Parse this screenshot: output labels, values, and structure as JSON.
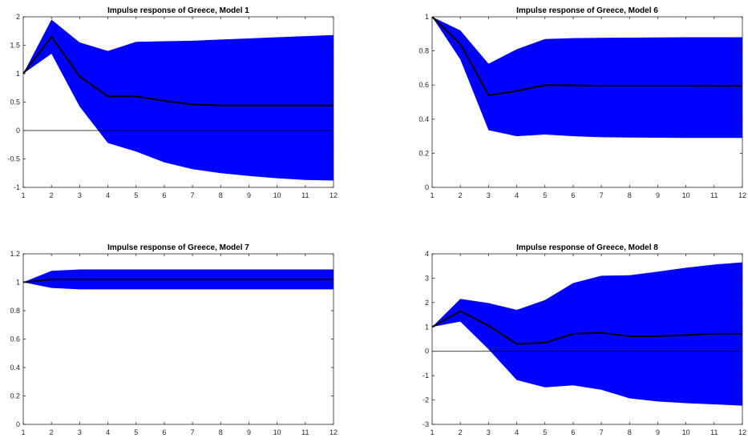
{
  "colors": {
    "band": "#0000ff",
    "line": "#000000",
    "zero_line": "#000000",
    "axes": "#262626",
    "background": "#ffffff"
  },
  "chart_data": [
    {
      "type": "area",
      "title": "Impulse response of Greece, Model 1",
      "xlabel": "",
      "ylabel": "",
      "x": [
        1,
        2,
        3,
        4,
        5,
        6,
        7,
        8,
        9,
        10,
        11,
        12
      ],
      "xlim": [
        1,
        12
      ],
      "ylim": [
        -1,
        2
      ],
      "yticks": [
        -1,
        -0.5,
        0,
        0.5,
        1,
        1.5,
        2
      ],
      "ytick_labels": [
        "-1",
        "-0.5",
        "0",
        "0.5",
        "1",
        "1.5",
        "2"
      ],
      "zero_line": true,
      "grid": false,
      "legend": "none",
      "series": [
        {
          "role": "median",
          "values": [
            1,
            1.65,
            0.95,
            0.6,
            0.6,
            0.52,
            0.46,
            0.44,
            0.44,
            0.44,
            0.44,
            0.44
          ]
        },
        {
          "role": "upper",
          "values": [
            1,
            1.95,
            1.55,
            1.4,
            1.56,
            1.57,
            1.58,
            1.6,
            1.62,
            1.64,
            1.66,
            1.68
          ]
        },
        {
          "role": "lower",
          "values": [
            1,
            1.35,
            0.42,
            -0.22,
            -0.37,
            -0.56,
            -0.68,
            -0.75,
            -0.8,
            -0.84,
            -0.87,
            -0.88
          ]
        }
      ]
    },
    {
      "type": "area",
      "title": "Impulse response of Greece, Model 6",
      "xlabel": "",
      "ylabel": "",
      "x": [
        1,
        2,
        3,
        4,
        5,
        6,
        7,
        8,
        9,
        10,
        11,
        12
      ],
      "xlim": [
        1,
        12
      ],
      "ylim": [
        0,
        1
      ],
      "yticks": [
        0,
        0.2,
        0.4,
        0.6,
        0.8,
        1
      ],
      "ytick_labels": [
        "0",
        "0.2",
        "0.4",
        "0.6",
        "0.8",
        "1"
      ],
      "zero_line": false,
      "grid": false,
      "legend": "none",
      "series": [
        {
          "role": "median",
          "values": [
            1,
            0.84,
            0.54,
            0.565,
            0.6,
            0.598,
            0.596,
            0.596,
            0.596,
            0.596,
            0.595,
            0.595
          ]
        },
        {
          "role": "upper",
          "values": [
            1,
            0.92,
            0.725,
            0.81,
            0.87,
            0.875,
            0.877,
            0.878,
            0.879,
            0.88,
            0.88,
            0.88
          ]
        },
        {
          "role": "lower",
          "values": [
            1,
            0.75,
            0.335,
            0.3,
            0.31,
            0.3,
            0.294,
            0.292,
            0.291,
            0.29,
            0.29,
            0.29
          ]
        }
      ]
    },
    {
      "type": "area",
      "title": "Impulse response of Greece, Model 7",
      "xlabel": "",
      "ylabel": "",
      "x": [
        1,
        2,
        3,
        4,
        5,
        6,
        7,
        8,
        9,
        10,
        11,
        12
      ],
      "xlim": [
        1,
        12
      ],
      "ylim": [
        0,
        1.2
      ],
      "yticks": [
        0,
        0.2,
        0.4,
        0.6,
        0.8,
        1,
        1.2
      ],
      "ytick_labels": [
        "0",
        "0.2",
        "0.4",
        "0.6",
        "0.8",
        "1",
        "1.2"
      ],
      "zero_line": false,
      "grid": false,
      "legend": "none",
      "series": [
        {
          "role": "median",
          "values": [
            1,
            1.02,
            1.02,
            1.02,
            1.02,
            1.02,
            1.02,
            1.02,
            1.02,
            1.02,
            1.02,
            1.02
          ]
        },
        {
          "role": "upper",
          "values": [
            1,
            1.08,
            1.09,
            1.09,
            1.09,
            1.09,
            1.09,
            1.09,
            1.09,
            1.09,
            1.09,
            1.09
          ]
        },
        {
          "role": "lower",
          "values": [
            1,
            0.96,
            0.95,
            0.95,
            0.95,
            0.95,
            0.95,
            0.95,
            0.95,
            0.95,
            0.95,
            0.95
          ]
        }
      ]
    },
    {
      "type": "area",
      "title": "Impulse response of Greece, Model 8",
      "xlabel": "",
      "ylabel": "",
      "x": [
        1,
        2,
        3,
        4,
        5,
        6,
        7,
        8,
        9,
        10,
        11,
        12
      ],
      "xlim": [
        1,
        12
      ],
      "ylim": [
        -3,
        4
      ],
      "yticks": [
        -3,
        -2,
        -1,
        0,
        1,
        2,
        3,
        4
      ],
      "ytick_labels": [
        "-3",
        "-2",
        "-1",
        "0",
        "1",
        "2",
        "3",
        "4"
      ],
      "zero_line": true,
      "grid": false,
      "legend": "none",
      "series": [
        {
          "role": "median",
          "values": [
            1,
            1.65,
            1.05,
            0.3,
            0.35,
            0.72,
            0.76,
            0.62,
            0.62,
            0.67,
            0.72,
            0.72
          ]
        },
        {
          "role": "upper",
          "values": [
            1,
            2.15,
            1.98,
            1.7,
            2.1,
            2.8,
            3.1,
            3.12,
            3.27,
            3.43,
            3.56,
            3.65
          ]
        },
        {
          "role": "lower",
          "values": [
            1,
            1.22,
            0.08,
            -1.18,
            -1.48,
            -1.4,
            -1.58,
            -1.93,
            -2.06,
            -2.13,
            -2.18,
            -2.23
          ]
        }
      ]
    }
  ]
}
